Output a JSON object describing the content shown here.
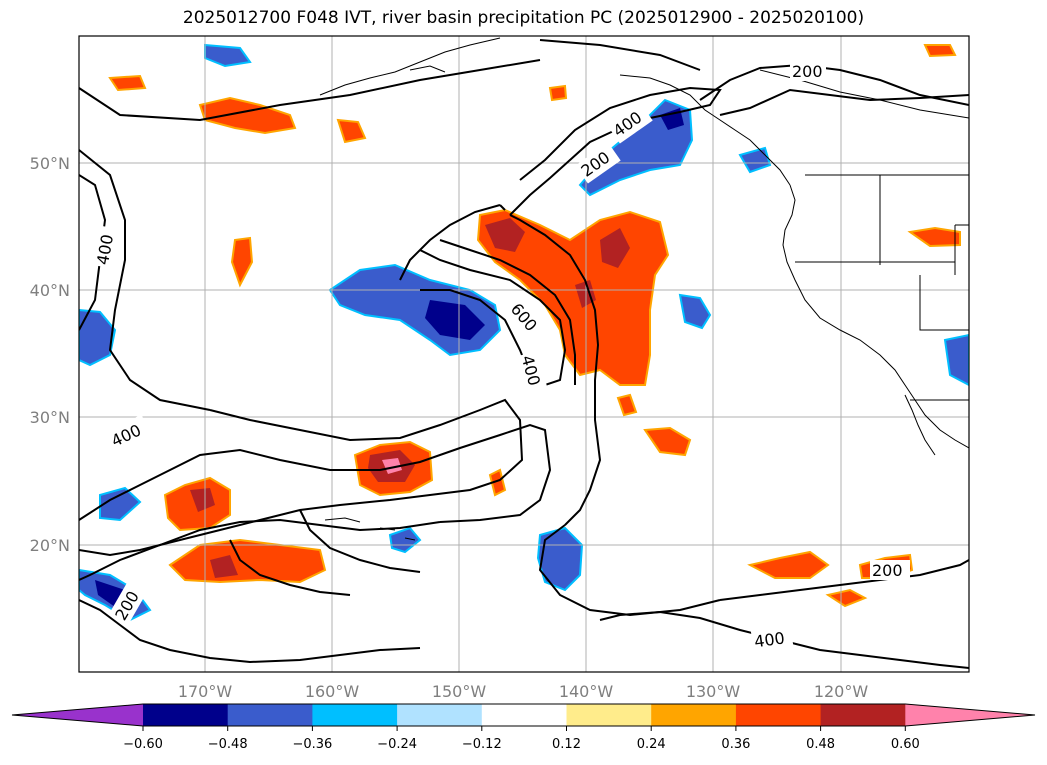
{
  "title": "2025012700 F048 IVT, river basin precipitation PC (2025012900 - 2025020100)",
  "map": {
    "lat_labels": [
      "50°N",
      "40°N",
      "30°N",
      "20°N"
    ],
    "lon_labels": [
      "170°W",
      "160°W",
      "150°W",
      "140°W",
      "130°W",
      "120°W"
    ],
    "contour_labels": [
      "200",
      "400",
      "200",
      "400",
      "600",
      "400",
      "400",
      "200",
      "200",
      "400"
    ]
  },
  "colorbar": {
    "ticks": [
      "−0.60",
      "−0.48",
      "−0.36",
      "−0.24",
      "−0.12",
      "0.12",
      "0.24",
      "0.36",
      "0.48",
      "0.60"
    ],
    "colors": [
      "#9932cc",
      "#00008b",
      "#3a5ccc",
      "#00bfff",
      "#b0e2ff",
      "#ffffff",
      "#ffec8b",
      "#ffa500",
      "#ff4500",
      "#b22222",
      "#ff82ab"
    ]
  }
}
